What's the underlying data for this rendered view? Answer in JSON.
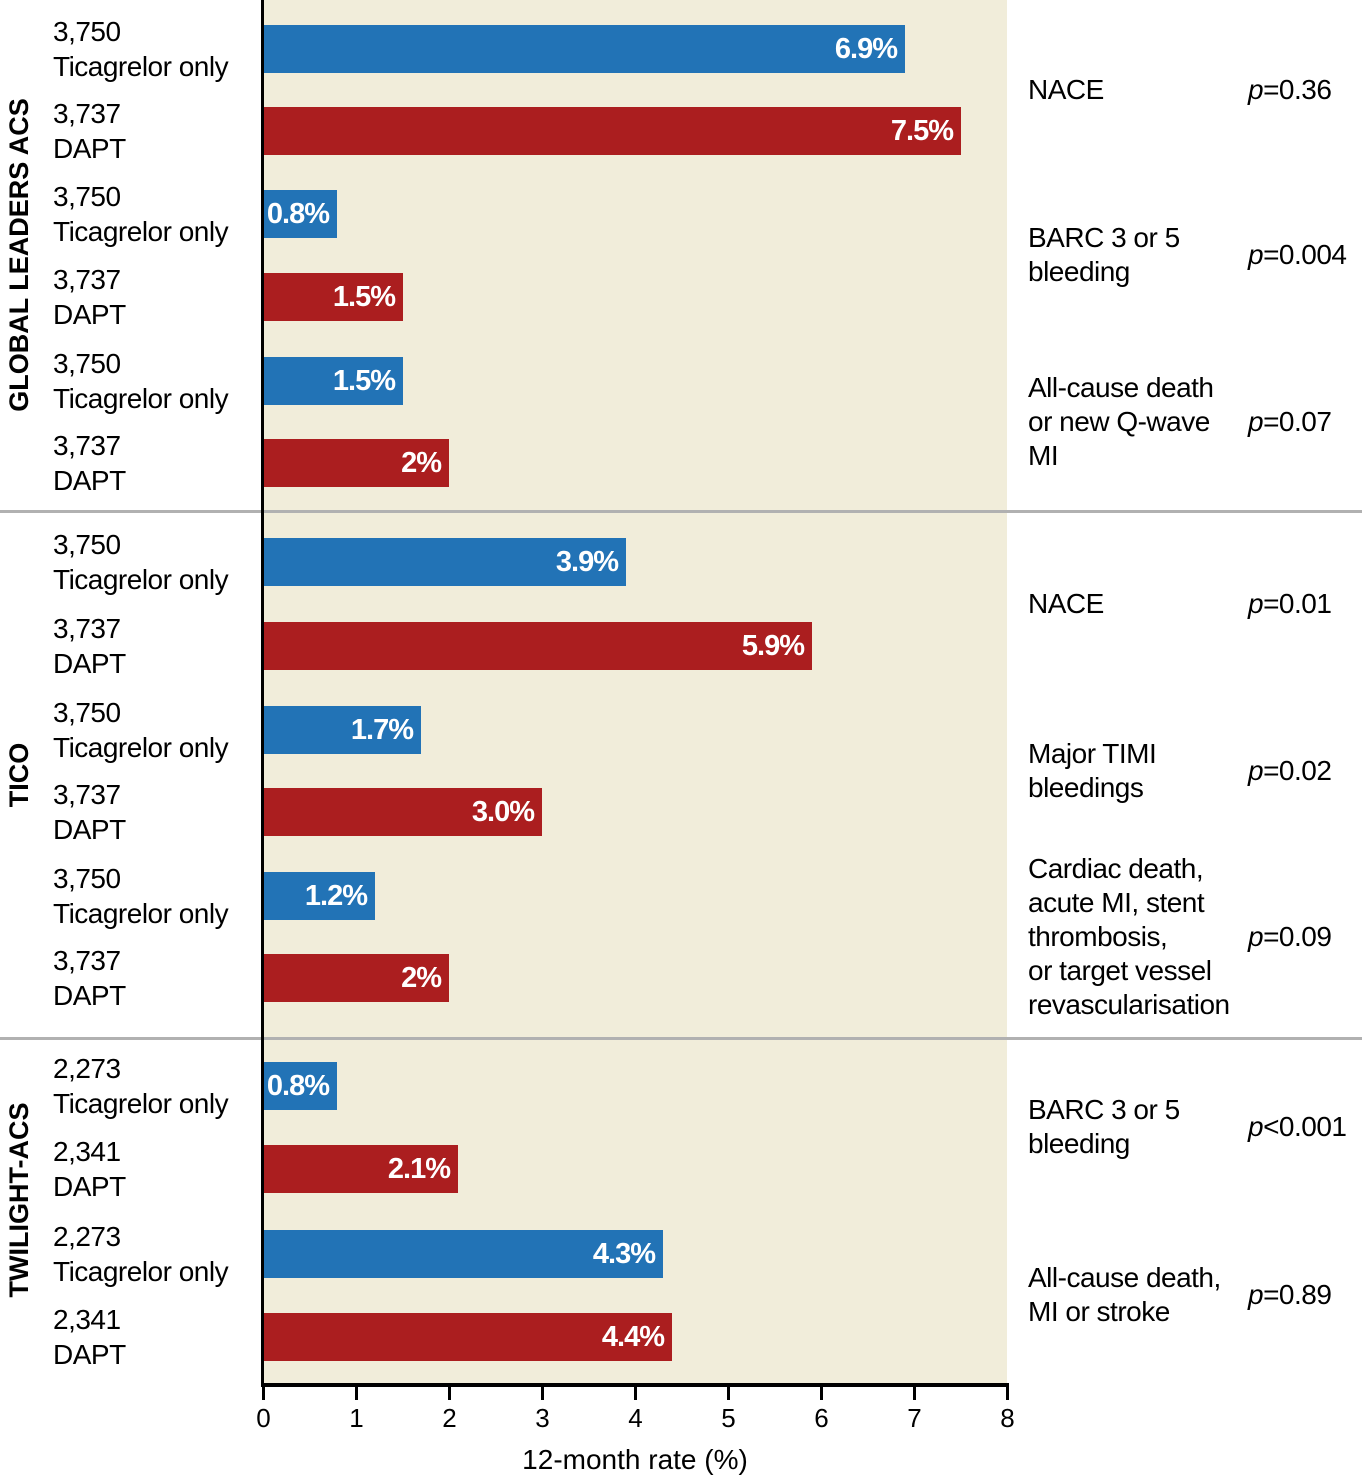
{
  "chart_data": {
    "type": "bar",
    "orientation": "horizontal",
    "title": "",
    "xlabel": "12-month rate (%)",
    "ylabel": "",
    "xlim": [
      0,
      8
    ],
    "x_ticks": [
      0,
      1,
      2,
      3,
      4,
      5,
      6,
      7,
      8
    ],
    "grid": false,
    "legend_position": "none",
    "colors": {
      "ticagrelor_bar": "#2273b6",
      "dapt_bar": "#ab1e1f",
      "plot_background": "#f1edda",
      "axis": "#000000",
      "separator": "#b1b1b1",
      "bar_value_text": "#ffffff",
      "text": "#000000"
    },
    "sections": [
      {
        "trial": "GLOBAL LEADERS ACS",
        "outcomes": [
          {
            "label_lines": [
              "NACE"
            ],
            "p_sym": "p",
            "p_rest": "=0.36",
            "rows": [
              {
                "n": "3,750",
                "arm": "Ticagrelor only",
                "value": 6.9,
                "display": "6.9%",
                "group": "ticagrelor"
              },
              {
                "n": "3,737",
                "arm": "DAPT",
                "value": 7.5,
                "display": "7.5%",
                "group": "dapt"
              }
            ]
          },
          {
            "label_lines": [
              "BARC 3 or 5",
              "bleeding"
            ],
            "p_sym": "p",
            "p_rest": "=0.004",
            "rows": [
              {
                "n": "3,750",
                "arm": "Ticagrelor only",
                "value": 0.8,
                "display": "0.8%",
                "group": "ticagrelor"
              },
              {
                "n": "3,737",
                "arm": "DAPT",
                "value": 1.5,
                "display": "1.5%",
                "group": "dapt"
              }
            ]
          },
          {
            "label_lines": [
              "All-cause death",
              "or new Q-wave",
              "MI"
            ],
            "p_sym": "p",
            "p_rest": "=0.07",
            "rows": [
              {
                "n": "3,750",
                "arm": "Ticagrelor only",
                "value": 1.5,
                "display": "1.5%",
                "group": "ticagrelor"
              },
              {
                "n": "3,737",
                "arm": "DAPT",
                "value": 2,
                "display": "2%",
                "group": "dapt"
              }
            ]
          }
        ]
      },
      {
        "trial": "TICO",
        "outcomes": [
          {
            "label_lines": [
              "NACE"
            ],
            "p_sym": "p",
            "p_rest": "=0.01",
            "rows": [
              {
                "n": "3,750",
                "arm": "Ticagrelor only",
                "value": 3.9,
                "display": "3.9%",
                "group": "ticagrelor"
              },
              {
                "n": "3,737",
                "arm": "DAPT",
                "value": 5.9,
                "display": "5.9%",
                "group": "dapt"
              }
            ]
          },
          {
            "label_lines": [
              "Major TIMI",
              "bleedings"
            ],
            "p_sym": "p",
            "p_rest": "=0.02",
            "rows": [
              {
                "n": "3,750",
                "arm": "Ticagrelor only",
                "value": 1.7,
                "display": "1.7%",
                "group": "ticagrelor"
              },
              {
                "n": "3,737",
                "arm": "DAPT",
                "value": 3.0,
                "display": "3.0%",
                "group": "dapt"
              }
            ]
          },
          {
            "label_lines": [
              "Cardiac death,",
              "acute MI, stent",
              "thrombosis,",
              "or target vessel",
              "revascularisation"
            ],
            "p_sym": "p",
            "p_rest": "=0.09",
            "rows": [
              {
                "n": "3,750",
                "arm": "Ticagrelor only",
                "value": 1.2,
                "display": "1.2%",
                "group": "ticagrelor"
              },
              {
                "n": "3,737",
                "arm": "DAPT",
                "value": 2,
                "display": "2%",
                "group": "dapt"
              }
            ]
          }
        ]
      },
      {
        "trial": "TWILIGHT-ACS",
        "outcomes": [
          {
            "label_lines": [
              "BARC 3 or 5",
              "bleeding"
            ],
            "p_sym": "p",
            "p_rest": "<0.001",
            "rows": [
              {
                "n": "2,273",
                "arm": "Ticagrelor only",
                "value": 0.8,
                "display": "0.8%",
                "group": "ticagrelor"
              },
              {
                "n": "2,341",
                "arm": "DAPT",
                "value": 2.1,
                "display": "2.1%",
                "group": "dapt"
              }
            ]
          },
          {
            "label_lines": [
              "All-cause death,",
              "MI or stroke"
            ],
            "p_sym": "p",
            "p_rest": "=0.89",
            "rows": [
              {
                "n": "2,273",
                "arm": "Ticagrelor only",
                "value": 4.3,
                "display": "4.3%",
                "group": "ticagrelor"
              },
              {
                "n": "2,341",
                "arm": "DAPT",
                "value": 4.4,
                "display": "4.4%",
                "group": "dapt"
              }
            ]
          }
        ]
      }
    ]
  }
}
